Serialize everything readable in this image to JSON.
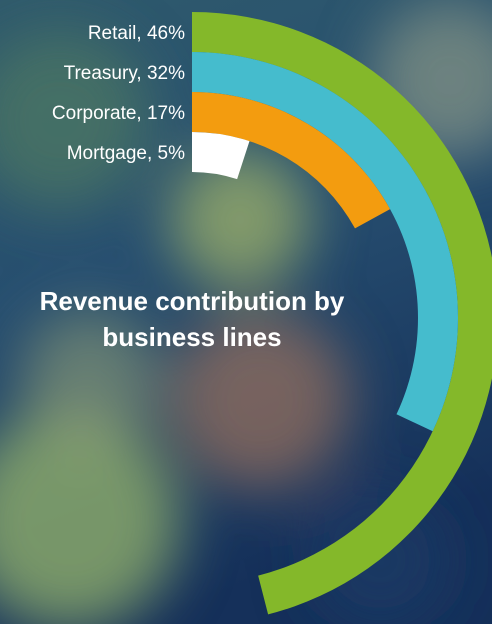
{
  "chart_data": {
    "type": "radial_bar",
    "title": "Revenue contribution by business lines",
    "values": [
      46,
      32,
      17,
      5
    ],
    "value_labels": [
      "Retail, 46%",
      "Treasury, 32%",
      "Corporate, 17%",
      "Mortgage, 5%"
    ],
    "colors": [
      "#84b82a",
      "#45bccd",
      "#f39c0f",
      "#ffffff"
    ]
  }
}
